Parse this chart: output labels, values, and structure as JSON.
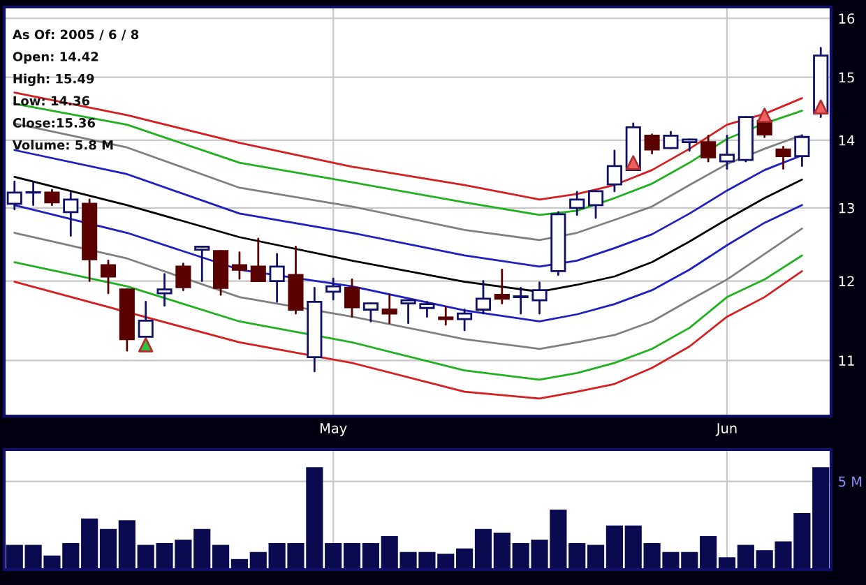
{
  "chart_data": [
    {
      "type": "candlestick",
      "categories": [
        null,
        null,
        null,
        null,
        null,
        null,
        null,
        null,
        null,
        null,
        null,
        null,
        null,
        null,
        null,
        null,
        null,
        "May",
        null,
        null,
        null,
        null,
        null,
        null,
        null,
        null,
        null,
        null,
        null,
        null,
        null,
        null,
        null,
        null,
        null,
        null,
        null,
        null,
        "Jun",
        null,
        null,
        null,
        null,
        null
      ],
      "ohlc": [
        [
          13.06,
          13.38,
          12.98,
          13.22
        ],
        [
          13.22,
          13.36,
          13.04,
          13.22
        ],
        [
          13.22,
          13.26,
          13.04,
          13.08
        ],
        [
          12.94,
          13.22,
          12.61,
          13.12
        ],
        [
          13.06,
          13.12,
          12.0,
          12.29
        ],
        [
          12.21,
          12.27,
          11.84,
          12.06
        ],
        [
          11.89,
          11.89,
          11.12,
          11.26
        ],
        [
          11.29,
          11.73,
          11.29,
          11.49
        ],
        [
          11.84,
          12.09,
          11.68,
          11.89
        ],
        [
          12.19,
          12.23,
          11.88,
          11.92
        ],
        [
          12.42,
          12.46,
          12.0,
          12.46
        ],
        [
          12.4,
          12.4,
          11.82,
          11.91
        ],
        [
          12.21,
          12.38,
          12.03,
          12.15
        ],
        [
          12.19,
          12.57,
          12.0,
          12.0
        ],
        [
          12.0,
          12.36,
          11.73,
          12.19
        ],
        [
          12.08,
          12.46,
          11.58,
          11.63
        ],
        [
          11.04,
          11.91,
          10.87,
          11.73
        ],
        [
          11.86,
          12.03,
          11.76,
          11.93
        ],
        [
          11.91,
          12.02,
          11.54,
          11.66
        ],
        [
          11.63,
          11.71,
          11.48,
          11.71
        ],
        [
          11.63,
          11.82,
          11.46,
          11.58
        ],
        [
          11.71,
          11.75,
          11.46,
          11.75
        ],
        [
          11.65,
          11.73,
          11.54,
          11.7
        ],
        [
          11.53,
          11.66,
          11.44,
          11.51
        ],
        [
          11.51,
          11.63,
          11.37,
          11.58
        ],
        [
          11.63,
          12.0,
          11.58,
          11.77
        ],
        [
          11.82,
          12.15,
          11.71,
          11.77
        ],
        [
          11.79,
          11.91,
          11.58,
          11.8
        ],
        [
          11.75,
          11.98,
          11.58,
          11.88
        ],
        [
          12.13,
          12.94,
          12.08,
          12.91
        ],
        [
          13.0,
          13.23,
          12.9,
          13.12
        ],
        [
          13.04,
          13.24,
          12.86,
          13.24
        ],
        [
          13.34,
          13.84,
          13.24,
          13.61
        ],
        [
          13.55,
          14.26,
          13.55,
          14.2
        ],
        [
          14.07,
          14.09,
          13.8,
          13.86
        ],
        [
          13.88,
          14.13,
          13.88,
          14.07
        ],
        [
          13.97,
          14.01,
          13.84,
          14.01
        ],
        [
          13.97,
          14.07,
          13.68,
          13.74
        ],
        [
          13.68,
          14.07,
          13.57,
          13.78
        ],
        [
          13.7,
          14.36,
          13.68,
          14.36
        ],
        [
          14.3,
          14.3,
          14.05,
          14.09
        ],
        [
          13.86,
          13.9,
          13.57,
          13.76
        ],
        [
          13.76,
          14.07,
          13.61,
          14.05
        ],
        [
          14.42,
          15.49,
          14.36,
          15.36
        ]
      ],
      "series": [
        {
          "type": "line",
          "color": "#d42020",
          "values": [
            14.75,
            null,
            null,
            null,
            null,
            null,
            14.39,
            null,
            null,
            null,
            null,
            null,
            13.96,
            null,
            null,
            null,
            null,
            null,
            13.6,
            null,
            null,
            null,
            null,
            null,
            13.33,
            null,
            null,
            null,
            13.12,
            null,
            13.2,
            null,
            13.33,
            null,
            13.55,
            null,
            13.87,
            null,
            14.24,
            null,
            14.41,
            null,
            14.66,
            null
          ]
        },
        {
          "type": "line",
          "color": "#20b020",
          "values": [
            14.57,
            null,
            null,
            null,
            null,
            null,
            14.24,
            null,
            null,
            null,
            null,
            null,
            13.66,
            null,
            null,
            null,
            null,
            null,
            13.37,
            null,
            null,
            null,
            null,
            null,
            13.08,
            null,
            null,
            null,
            12.9,
            null,
            12.96,
            null,
            13.14,
            null,
            13.35,
            null,
            13.66,
            null,
            14.02,
            null,
            14.26,
            null,
            14.46,
            null
          ]
        },
        {
          "type": "line",
          "color": "#808080",
          "values": [
            14.26,
            null,
            null,
            null,
            null,
            null,
            13.89,
            null,
            null,
            null,
            null,
            null,
            13.29,
            null,
            null,
            null,
            null,
            null,
            13.02,
            null,
            null,
            null,
            null,
            null,
            12.69,
            null,
            null,
            null,
            12.55,
            null,
            12.65,
            null,
            12.83,
            null,
            13.02,
            null,
            13.33,
            null,
            13.64,
            null,
            13.87,
            null,
            14.08,
            null
          ]
        },
        {
          "type": "line",
          "color": "#2020c0",
          "values": [
            13.85,
            null,
            null,
            null,
            null,
            null,
            13.49,
            null,
            null,
            null,
            null,
            null,
            12.92,
            null,
            null,
            null,
            null,
            null,
            12.65,
            null,
            null,
            null,
            null,
            null,
            12.34,
            null,
            null,
            null,
            12.19,
            null,
            12.27,
            null,
            12.44,
            null,
            12.63,
            null,
            12.92,
            null,
            13.25,
            null,
            13.55,
            null,
            13.77,
            null
          ]
        },
        {
          "type": "line",
          "color": "#000000",
          "values": [
            13.45,
            null,
            null,
            null,
            null,
            null,
            13.04,
            null,
            null,
            null,
            null,
            null,
            12.59,
            null,
            null,
            null,
            null,
            null,
            12.27,
            null,
            null,
            null,
            null,
            null,
            11.99,
            null,
            null,
            null,
            11.86,
            null,
            11.95,
            null,
            12.06,
            null,
            12.25,
            null,
            12.53,
            null,
            12.84,
            null,
            13.14,
            null,
            13.41,
            null
          ]
        },
        {
          "type": "line",
          "color": "#2020c0",
          "values": [
            13.04,
            null,
            null,
            null,
            null,
            null,
            12.65,
            null,
            null,
            null,
            null,
            null,
            12.15,
            null,
            null,
            null,
            null,
            null,
            11.93,
            null,
            null,
            null,
            null,
            null,
            11.62,
            null,
            null,
            null,
            11.48,
            null,
            11.57,
            null,
            11.7,
            null,
            11.88,
            null,
            12.15,
            null,
            12.48,
            null,
            12.79,
            null,
            13.04,
            null
          ]
        },
        {
          "type": "line",
          "color": "#808080",
          "values": [
            12.65,
            null,
            null,
            null,
            null,
            null,
            12.3,
            null,
            null,
            null,
            null,
            null,
            11.79,
            null,
            null,
            null,
            null,
            null,
            11.54,
            null,
            null,
            null,
            null,
            null,
            11.26,
            null,
            null,
            null,
            11.14,
            null,
            11.22,
            null,
            11.31,
            null,
            11.48,
            null,
            11.75,
            null,
            12.02,
            null,
            12.36,
            null,
            12.71,
            null
          ]
        },
        {
          "type": "line",
          "color": "#20b020",
          "values": [
            12.25,
            null,
            null,
            null,
            null,
            null,
            11.93,
            null,
            null,
            null,
            null,
            null,
            11.48,
            null,
            null,
            null,
            null,
            null,
            11.22,
            null,
            null,
            null,
            null,
            null,
            10.88,
            null,
            null,
            null,
            10.77,
            null,
            10.85,
            null,
            10.97,
            null,
            11.14,
            null,
            11.4,
            null,
            11.79,
            null,
            12.02,
            null,
            12.34,
            null
          ]
        },
        {
          "type": "line",
          "color": "#d42020",
          "values": [
            11.99,
            null,
            null,
            null,
            null,
            null,
            null,
            null,
            null,
            null,
            null,
            null,
            11.22,
            null,
            null,
            null,
            null,
            null,
            10.97,
            null,
            null,
            null,
            null,
            null,
            10.63,
            null,
            null,
            null,
            10.55,
            null,
            10.63,
            null,
            10.72,
            null,
            10.91,
            null,
            11.17,
            null,
            11.54,
            null,
            11.79,
            null,
            12.13,
            null
          ]
        },
        {
          "type": "scatter",
          "marker": "triangle",
          "color": "#30c040",
          "values": [
            null,
            null,
            null,
            null,
            null,
            null,
            null,
            11.19,
            null,
            null,
            null,
            null,
            null,
            null,
            null,
            null,
            null,
            null,
            null,
            null,
            null,
            null,
            null,
            null,
            null,
            null,
            null,
            null,
            null,
            null,
            null,
            null,
            null,
            null,
            null,
            null,
            null,
            null,
            null,
            null,
            null,
            null,
            null,
            null
          ]
        },
        {
          "type": "scatter",
          "marker": "triangle",
          "color": "#f06060",
          "values": [
            null,
            null,
            null,
            null,
            null,
            null,
            null,
            null,
            null,
            null,
            null,
            null,
            null,
            null,
            null,
            null,
            null,
            null,
            null,
            null,
            null,
            null,
            null,
            null,
            null,
            null,
            null,
            null,
            null,
            null,
            null,
            null,
            null,
            13.66,
            null,
            null,
            null,
            null,
            null,
            null,
            14.39,
            null,
            null,
            14.52
          ]
        }
      ],
      "log": "y",
      "ylim": [
        10.35,
        16.2
      ],
      "yticks": [
        11,
        12,
        13,
        14,
        15,
        16
      ],
      "grid": true,
      "annotations": [
        "As Of: 2005 / 6 / 8",
        "Open: 14.42",
        "High: 15.49",
        "Low: 14.36",
        "Close:15.36",
        "Volume: 5.8 M"
      ]
    },
    {
      "type": "bar",
      "categories": [
        null,
        null,
        null,
        null,
        null,
        null,
        null,
        null,
        null,
        null,
        null,
        null,
        null,
        null,
        null,
        null,
        null,
        null,
        null,
        null,
        null,
        null,
        null,
        null,
        null,
        null,
        null,
        null,
        null,
        null,
        null,
        null,
        null,
        null,
        null,
        null,
        null,
        null,
        null,
        null,
        null,
        null,
        null,
        null
      ],
      "color": "#0a0a50",
      "values": [
        1.4,
        1.4,
        0.8,
        1.5,
        2.9,
        2.3,
        2.8,
        1.4,
        1.5,
        1.7,
        2.3,
        1.4,
        0.6,
        1.0,
        1.5,
        1.5,
        5.8,
        1.5,
        1.5,
        1.5,
        1.9,
        1.0,
        1.0,
        0.9,
        1.2,
        2.3,
        2.1,
        1.5,
        1.7,
        3.4,
        1.5,
        1.4,
        2.5,
        2.5,
        1.5,
        1.0,
        1.0,
        1.9,
        0.7,
        1.4,
        1.1,
        1.6,
        3.2,
        5.8
      ],
      "ylim": [
        0,
        6.8
      ],
      "yticks": [
        {
          "value": 5,
          "label": "5 M"
        }
      ],
      "grid": true,
      "tick_labels": "y"
    }
  ]
}
